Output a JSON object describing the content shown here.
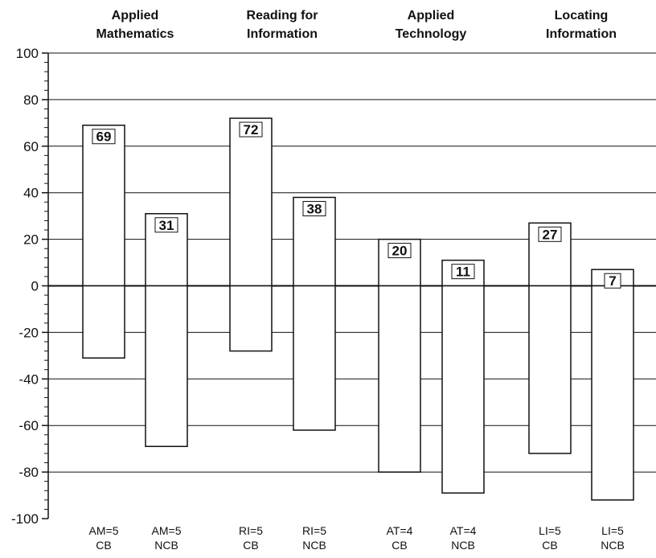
{
  "chart_data": {
    "type": "bar",
    "groups": [
      "Applied Mathematics",
      "Reading for Information",
      "Applied Technology",
      "Locating Information"
    ],
    "categories": [
      "AM=5 CB",
      "AM=5 NCB",
      "RI=5 CB",
      "RI=5 NCB",
      "AT=4 CB",
      "AT=4 NCB",
      "LI=5 CB",
      "LI=5 NCB"
    ],
    "series": [
      {
        "values": [
          69,
          31,
          72,
          38,
          20,
          11,
          27,
          7
        ]
      },
      {
        "values": [
          -31,
          -69,
          -28,
          -62,
          -80,
          -89,
          -72,
          -92
        ]
      }
    ],
    "data_labels": [
      "69",
      "31",
      "72",
      "38",
      "20",
      "11",
      "27",
      "7"
    ],
    "ylim": [
      -100,
      100
    ],
    "yticks": [
      "100",
      "80",
      "60",
      "40",
      "20",
      "0",
      "-20",
      "-40",
      "-60",
      "-80",
      "-100"
    ],
    "grid": true,
    "colors": {
      "bar_fill": "#ffffff",
      "bar_stroke": "#111111",
      "grid": "#111111"
    }
  }
}
